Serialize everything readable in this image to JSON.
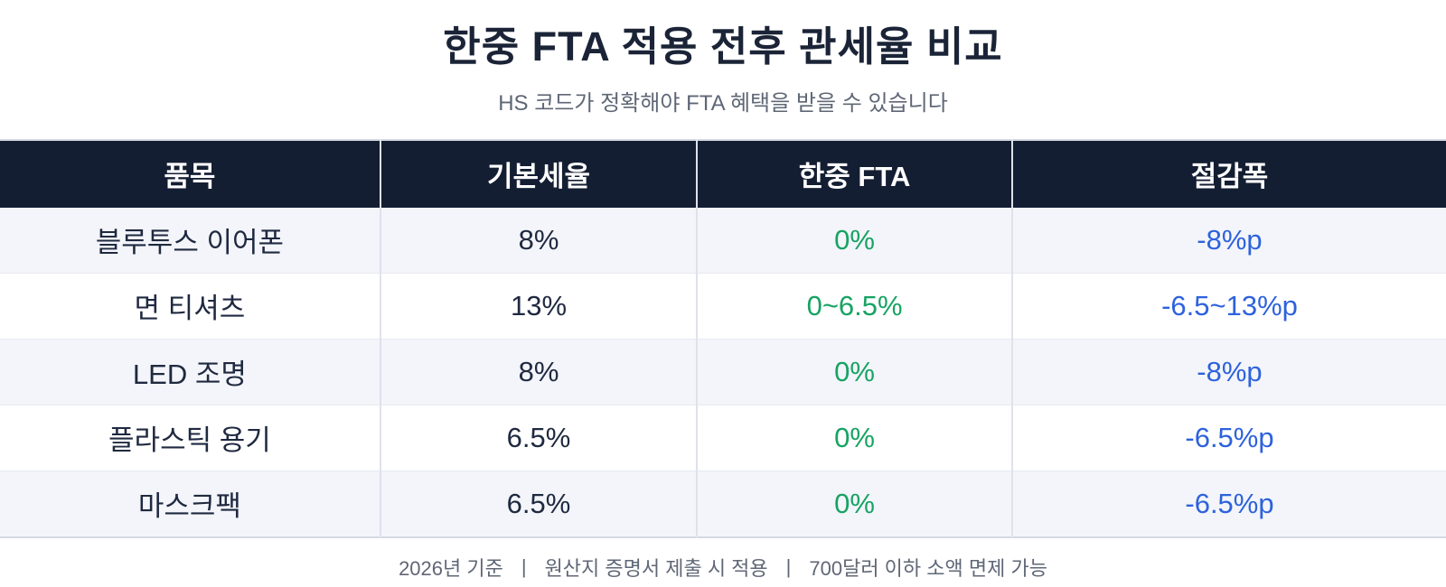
{
  "page": {
    "title": "한중 FTA 적용 전후 관세율 비교",
    "subtitle": "HS 코드가 정확해야 FTA 혜택을 받을 수 있습니다"
  },
  "table": {
    "columns": [
      "품목",
      "기본세율",
      "한중 FTA",
      "절감폭"
    ],
    "rows": [
      {
        "item": "블루투스 이어폰",
        "base_rate": "8%",
        "fta_rate": "0%",
        "reduction": "-8%p"
      },
      {
        "item": "면 티셔츠",
        "base_rate": "13%",
        "fta_rate": "0~6.5%",
        "reduction": "-6.5~13%p"
      },
      {
        "item": "LED 조명",
        "base_rate": "8%",
        "fta_rate": "0%",
        "reduction": "-8%p"
      },
      {
        "item": "플라스틱 용기",
        "base_rate": "6.5%",
        "fta_rate": "0%",
        "reduction": "-6.5%p"
      },
      {
        "item": "마스크팩",
        "base_rate": "6.5%",
        "fta_rate": "0%",
        "reduction": "-6.5%p"
      }
    ]
  },
  "footer": {
    "items": [
      "2026년 기준",
      "원산지 증명서 제출 시 적용",
      "700달러 이하 소액 면제 가능"
    ],
    "separator": "|"
  },
  "colors": {
    "title_text": "#1b2437",
    "header_bg": "#141e33",
    "header_text": "#ffffff",
    "body_text": "#1f2940",
    "fta_green": "#17a363",
    "reduction_blue": "#2e62dc",
    "row_alt_bg": "#f3f5fa",
    "row_bg": "#ffffff",
    "muted_text": "#5f6776"
  },
  "chart_data": {
    "type": "table",
    "title": "한중 FTA 적용 전후 관세율 비교",
    "subtitle": "HS 코드가 정확해야 FTA 혜택을 받을 수 있습니다",
    "columns": [
      "품목",
      "기본세율",
      "한중 FTA",
      "절감폭"
    ],
    "rows": [
      [
        "블루투스 이어폰",
        "8%",
        "0%",
        "-8%p"
      ],
      [
        "면 티셔츠",
        "13%",
        "0~6.5%",
        "-6.5~13%p"
      ],
      [
        "LED 조명",
        "8%",
        "0%",
        "-8%p"
      ],
      [
        "플라스틱 용기",
        "6.5%",
        "0%",
        "-6.5%p"
      ],
      [
        "마스크팩",
        "6.5%",
        "0%",
        "-6.5%p"
      ]
    ],
    "footnote": "2026년 기준 | 원산지 증명서 제출 시 적용 | 700달러 이하 소액 면제 가능",
    "legend_position": "none",
    "notes": "FTA rate column rendered in green, reduction column in blue, header dark navy, alternating row shading"
  }
}
